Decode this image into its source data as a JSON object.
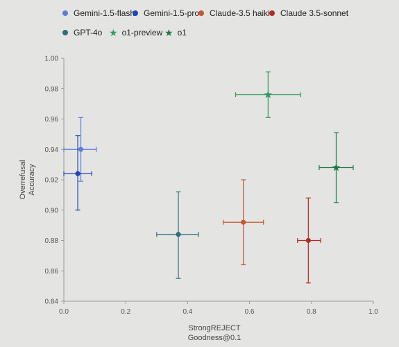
{
  "chart_data": {
    "type": "scatter",
    "xlabel_lines": [
      "StrongREJECT",
      "Goodness@0.1"
    ],
    "ylabel_lines": [
      "Overrefusal",
      "Accuracy"
    ],
    "xlim": [
      0.0,
      1.0
    ],
    "ylim": [
      0.84,
      1.0
    ],
    "x_ticks": [
      "0.0",
      "0.2",
      "0.4",
      "0.6",
      "0.8",
      "1.0"
    ],
    "y_ticks": [
      "0.84",
      "0.86",
      "0.88",
      "0.90",
      "0.92",
      "0.94",
      "0.96",
      "0.98",
      "1.00"
    ],
    "grid": false,
    "legend_position": "top",
    "series": [
      {
        "name": "Gemini-1.5-flash",
        "color": "#5b7fd6",
        "marker": "circle",
        "x": 0.055,
        "y": 0.94,
        "x_err": [
          0.0,
          0.105
        ],
        "y_err": [
          0.919,
          0.961
        ]
      },
      {
        "name": "Gemini-1.5-pro",
        "color": "#1f45b8",
        "marker": "circle",
        "x": 0.045,
        "y": 0.924,
        "x_err": [
          0.0,
          0.09
        ],
        "y_err": [
          0.9,
          0.949
        ]
      },
      {
        "name": "Claude-3.5 haiki",
        "color": "#c9562f",
        "marker": "circle",
        "x": 0.58,
        "y": 0.892,
        "x_err": [
          0.515,
          0.645
        ],
        "y_err": [
          0.864,
          0.92
        ]
      },
      {
        "name": "Claude 3.5-sonnet",
        "color": "#b52c1e",
        "marker": "circle",
        "x": 0.79,
        "y": 0.88,
        "x_err": [
          0.755,
          0.83
        ],
        "y_err": [
          0.852,
          0.908
        ]
      },
      {
        "name": "GPT-4o",
        "color": "#2e6e7c",
        "marker": "circle",
        "x": 0.37,
        "y": 0.884,
        "x_err": [
          0.3,
          0.435
        ],
        "y_err": [
          0.855,
          0.912
        ]
      },
      {
        "name": "o1-preview",
        "color": "#2f9a5c",
        "marker": "star",
        "x": 0.66,
        "y": 0.976,
        "x_err": [
          0.555,
          0.765
        ],
        "y_err": [
          0.961,
          0.991
        ]
      },
      {
        "name": "o1",
        "color": "#1f7a43",
        "marker": "star",
        "x": 0.88,
        "y": 0.928,
        "x_err": [
          0.825,
          0.935
        ],
        "y_err": [
          0.905,
          0.951
        ]
      }
    ]
  }
}
